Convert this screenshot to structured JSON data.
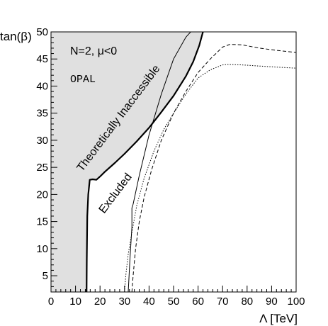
{
  "chart_data": {
    "type": "line",
    "xlabel": "Λ [TeV]",
    "ylabel": "tan(β)",
    "xlim": [
      0,
      100
    ],
    "ylim": [
      2,
      50
    ],
    "x_ticks": [
      0,
      10,
      20,
      30,
      40,
      50,
      60,
      70,
      80,
      90,
      100
    ],
    "y_ticks": [
      5,
      10,
      15,
      20,
      25,
      30,
      35,
      40,
      45,
      50
    ],
    "grid": false,
    "legend": "none",
    "annotations": {
      "model": "N=2, μ<0",
      "experiment": "OPAL",
      "region_theoretical": "Theoretically Inaccessible",
      "region_excluded": "Excluded"
    },
    "colors": {
      "inaccessible_fill": "#e0e0e0",
      "lines": "#000000"
    },
    "series": [
      {
        "style": "thick-solid",
        "x": [
          14.5,
          14.6,
          14.8,
          15.2,
          15.8,
          17.0,
          18.5,
          20.0,
          22.0,
          26.0,
          30.0,
          35.0,
          40.0,
          45.0,
          50.0,
          55.0,
          58.0,
          60.5,
          62.0
        ],
        "y": [
          2,
          8,
          16,
          20,
          22.7,
          22.8,
          22.7,
          23.3,
          24.2,
          25.8,
          27.5,
          29.8,
          32.3,
          35.2,
          38.2,
          41.8,
          44.5,
          47.5,
          50
        ]
      },
      {
        "style": "thin-solid",
        "x": [
          31.5,
          32.2,
          33.0,
          33.0,
          33.5,
          36.0,
          40.0,
          45.0,
          50.0,
          55.0,
          60.0,
          62.0
        ],
        "y": [
          2,
          8,
          14,
          17.5,
          18.2,
          23.5,
          31.0,
          38.5,
          45.0,
          49.0,
          51.5,
          52.5
        ]
      },
      {
        "style": "dashed",
        "x": [
          33.0,
          33.5,
          34.5,
          36.0,
          38.0,
          41.0,
          45.0,
          50.0,
          55.0,
          60.0,
          65.0,
          70.0,
          73.0,
          78.0,
          85.0,
          92.0,
          100.0
        ],
        "y": [
          2,
          5,
          10,
          15,
          19.5,
          24.5,
          30.0,
          35.0,
          39.0,
          42.5,
          45.0,
          47.2,
          47.7,
          47.6,
          47.0,
          46.6,
          46.2
        ]
      },
      {
        "style": "dotted",
        "x": [
          30.0,
          30.5,
          31.5,
          33.0,
          35.0,
          38.0,
          42.0,
          46.0,
          50.0,
          55.0,
          60.0,
          65.0,
          70.0,
          72.0,
          78.0,
          85.0,
          92.0,
          100.0
        ],
        "y": [
          2,
          5,
          9,
          13,
          18,
          23,
          28,
          32,
          35,
          38.5,
          41.5,
          43.0,
          43.9,
          44.0,
          43.9,
          43.7,
          43.5,
          43.3
        ]
      }
    ]
  }
}
